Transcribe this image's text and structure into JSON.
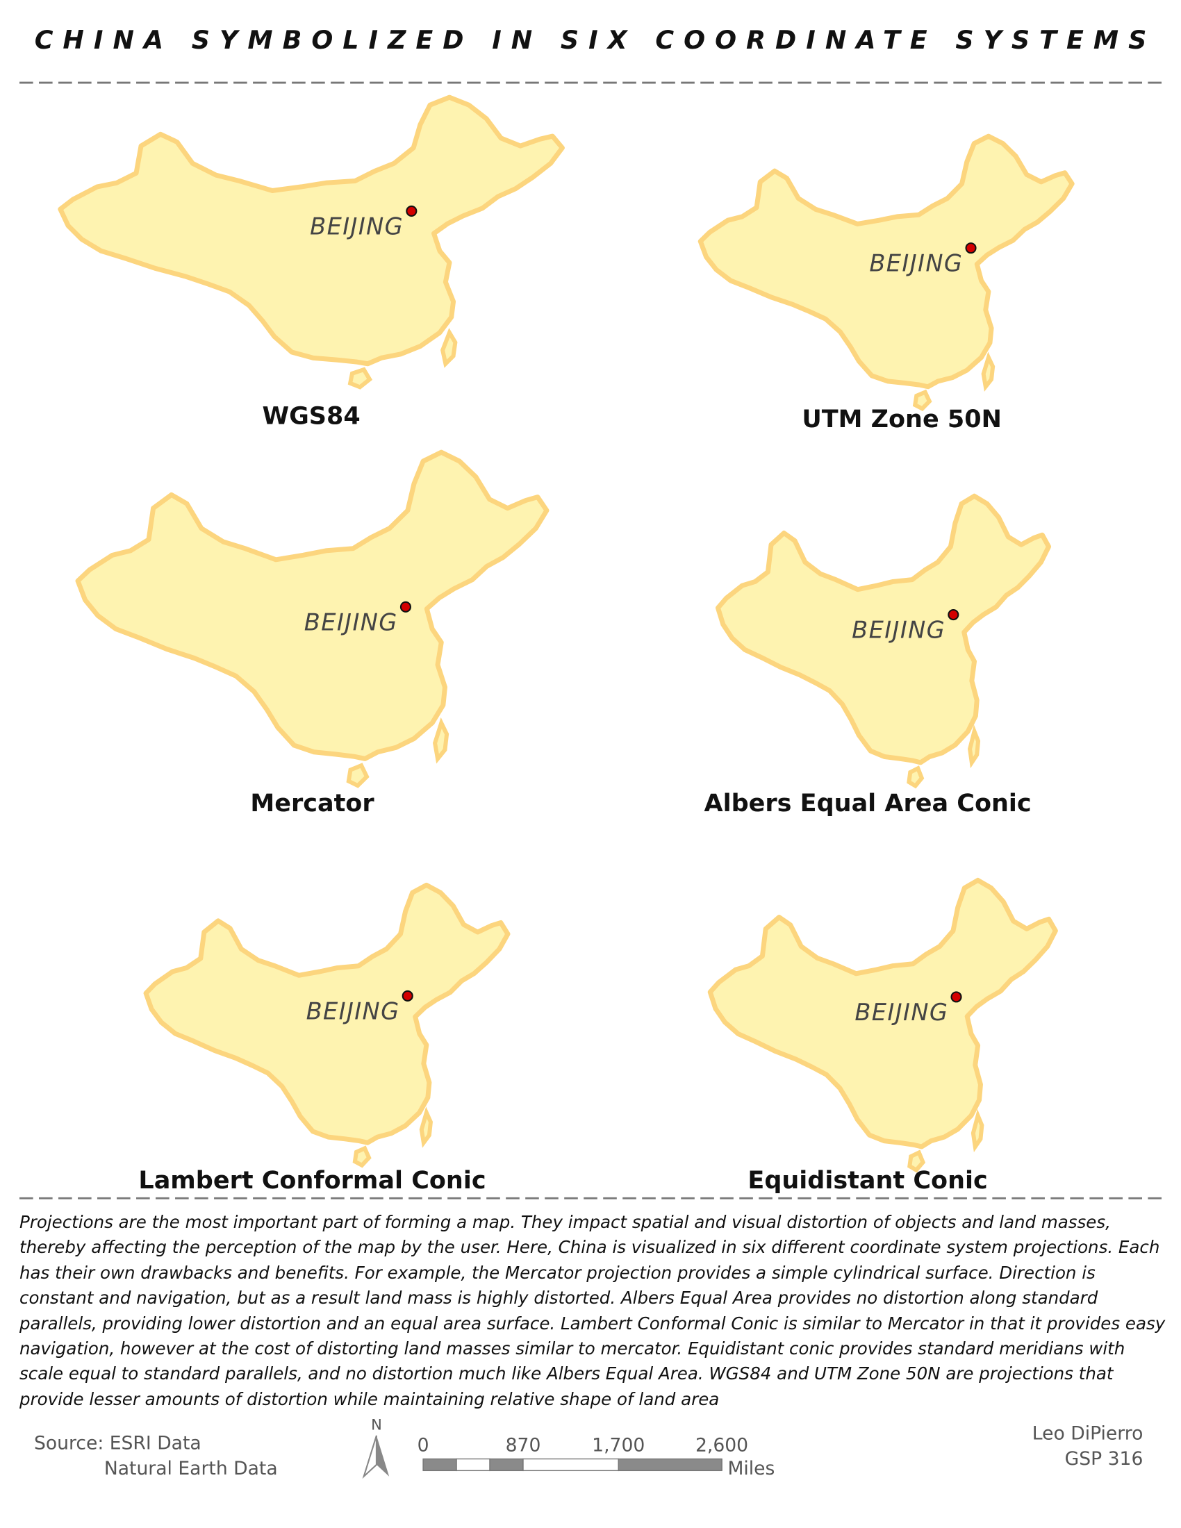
{
  "title": "CHINA SYMBOLIZED IN SIX COORDINATE SYSTEMS",
  "maps": [
    {
      "projection": "WGS84",
      "city": "BEIJING"
    },
    {
      "projection": "UTM Zone 50N",
      "city": "BEIJING"
    },
    {
      "projection": "Mercator",
      "city": "BEIJING"
    },
    {
      "projection": "Albers Equal Area Conic",
      "city": "BEIJING"
    },
    {
      "projection": "Lambert Conformal Conic",
      "city": "BEIJING"
    },
    {
      "projection": "Equidistant Conic",
      "city": "BEIJING"
    }
  ],
  "description": "Projections are the most important part of forming a map. They impact spatial and visual distortion of objects and land masses, thereby affecting the perception of the map by the user. Here, China is visualized in six different coordinate system projections. Each has their own drawbacks and benefits. For example, the Mercator projection provides a simple cylindrical surface. Direction is constant and navigation, but as a result land mass is highly distorted. Albers Equal Area provides no distortion along standard parallels, providing lower distortion and an equal area surface. Lambert Conformal Conic is similar to Mercator in that it provides easy navigation, however at the cost of distorting land masses similar to mercator. Equidistant conic provides standard meridians with scale equal to standard parallels, and no distortion much like Albers Equal Area. WGS84 and UTM Zone 50N are projections that provide lesser amounts of distortion while maintaining relative shape of land area",
  "source": [
    "Source: ESRI Data",
    "Natural Earth Data"
  ],
  "north": "N",
  "scale_bar": {
    "ticks": [
      0,
      870,
      {
        "value": 1700,
        "label": "1,700"
      },
      {
        "value": 2600,
        "label": "2,600"
      }
    ],
    "unit": "Miles"
  },
  "author": [
    "Leo DiPierro",
    "GSP 316"
  ]
}
